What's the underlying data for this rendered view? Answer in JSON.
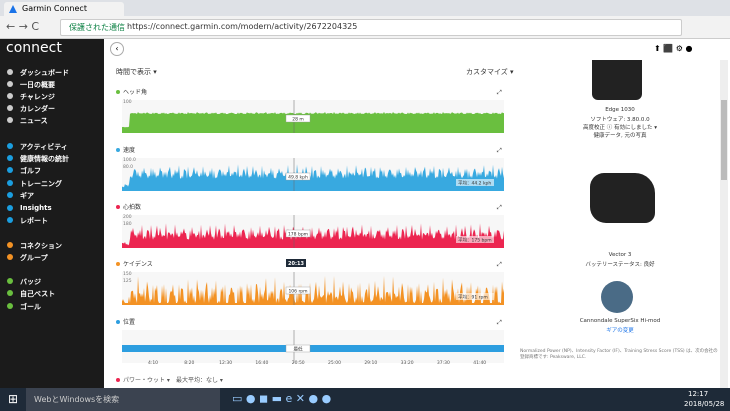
{
  "browser": {
    "tab_title": "Garmin Connect",
    "security": "保護された通信",
    "url": "https://connect.garmin.com/modern/activity/2672204325"
  },
  "sidebar": {
    "logo": "connect",
    "menu": [
      "ダッシュボード",
      "一日の概要",
      "チャレンジ",
      "カレンダー",
      "ニュース",
      "アクティビティ",
      "健康情報の統計",
      "ゴルフ",
      "トレーニング",
      "ギア",
      "Insights",
      "レポート",
      "コネクション",
      "グループ",
      "バッジ",
      "自己ベスト",
      "ゴール"
    ]
  },
  "main": {
    "view_toggle": "時間で表示 ▾",
    "customize": "カスタマイズ ▾",
    "charts": [
      {
        "label": "ヘッド角",
        "color": "#6abf3f",
        "y_labels": [
          "100"
        ],
        "readout": "28 m"
      },
      {
        "label": "速度",
        "color": "#38a9e0",
        "y_labels": [
          "100.0",
          "80.0"
        ],
        "readout": "49.8 kph",
        "average": "平均：44.2 kph"
      },
      {
        "label": "心拍数",
        "color": "#ec2550",
        "y_labels": [
          "200",
          "180"
        ],
        "readout": "178 bpm",
        "average": "平均：175 bpm"
      },
      {
        "label": "ケイデンス",
        "color": "#f39224",
        "y_labels": [
          "150",
          "125"
        ],
        "readout": "106 rpm",
        "average": "平均：91 rpm",
        "time": "20:13"
      },
      {
        "label": "位置",
        "color": "#2d9ee0",
        "y_labels": [],
        "readout": "最低"
      }
    ],
    "x_ticks": [
      "4:10",
      "8:20",
      "12:30",
      "16:40",
      "20:50",
      "25:00",
      "29:10",
      "33:20",
      "37:30",
      "41:40"
    ],
    "power_label": "パワー・ウット ▾",
    "power_avg": "最大平均：なし ▾"
  },
  "right_panel": {
    "device": "Edge 1030",
    "software": "ソフトウェア: 3.80.0.0",
    "altitude": "高度校正 ⓘ 有効にしました ▾",
    "health": "健康データ, 元の写真",
    "pedal": "Vector 3",
    "battery": "バッテリーステータス: 良好",
    "bike": "Cannondale SuperSix Hi-mod",
    "gear_change": "ギアの変更",
    "footnote": "Normalized Power (NP)、Intensity Factor (IF)、Training Stress Score (TSS) は、次の会社の登録商標です: Peaksware, LLC."
  },
  "taskbar": {
    "search": "WebとWindowsを検索",
    "time": "12:17",
    "date": "2018/05/28"
  }
}
